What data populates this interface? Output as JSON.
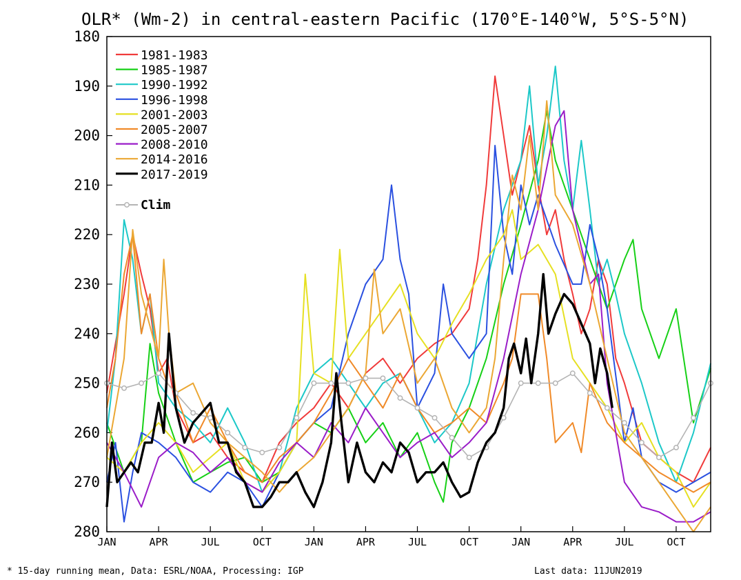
{
  "chart_data": {
    "type": "line",
    "title": "OLR* (Wm-2) in central-eastern Pacific (170°E-140°W, 5°S-5°N)",
    "ylim": [
      280,
      180
    ],
    "y_axis_inverted": true,
    "yticks": [
      180,
      190,
      200,
      210,
      220,
      230,
      240,
      250,
      260,
      270,
      280
    ],
    "xlim": [
      0,
      35
    ],
    "x_unit": "month index from first JAN",
    "xticks": [
      {
        "x": 0,
        "label": "JAN"
      },
      {
        "x": 3,
        "label": "APR"
      },
      {
        "x": 6,
        "label": "JUL"
      },
      {
        "x": 9,
        "label": "OCT"
      },
      {
        "x": 12,
        "label": "JAN"
      },
      {
        "x": 15,
        "label": "APR"
      },
      {
        "x": 18,
        "label": "JUL"
      },
      {
        "x": 21,
        "label": "OCT"
      },
      {
        "x": 24,
        "label": "JAN"
      },
      {
        "x": 27,
        "label": "APR"
      },
      {
        "x": 30,
        "label": "JUL"
      },
      {
        "x": 33,
        "label": "OCT"
      }
    ],
    "legend_position": "top-left",
    "grid": false,
    "series": [
      {
        "name": "1981-1983",
        "color": "#f03a3a",
        "width": 2,
        "x": [
          0,
          1,
          1.5,
          2,
          2.5,
          3,
          3.5,
          4,
          5,
          6,
          7,
          8,
          9,
          10,
          11,
          12,
          13,
          14,
          15,
          16,
          17,
          18,
          19,
          20,
          21,
          21.5,
          22,
          22.5,
          23,
          23.5,
          24,
          24.5,
          25,
          25.5,
          26,
          26.5,
          27,
          27.5,
          28,
          28.5,
          29,
          29.5,
          30,
          31,
          32,
          33,
          34,
          35
        ],
        "y": [
          252,
          232,
          220,
          228,
          235,
          248,
          245,
          255,
          262,
          260,
          265,
          268,
          270,
          262,
          258,
          255,
          250,
          255,
          248,
          245,
          250,
          245,
          242,
          240,
          235,
          225,
          210,
          188,
          200,
          212,
          205,
          198,
          210,
          220,
          215,
          225,
          232,
          240,
          235,
          225,
          230,
          245,
          250,
          262,
          265,
          268,
          270,
          263
        ]
      },
      {
        "name": "1985-1987",
        "color": "#16d016",
        "width": 2,
        "x": [
          0,
          1,
          2,
          2.5,
          3,
          4,
          5,
          6,
          7,
          8,
          9,
          10,
          11,
          12,
          13,
          14,
          15,
          16,
          17,
          18,
          19,
          19.5,
          20,
          21,
          22,
          23,
          24,
          25,
          25.5,
          26,
          27,
          28,
          29,
          30,
          30.5,
          31,
          32,
          33,
          34,
          35
        ],
        "y": [
          258,
          268,
          262,
          242,
          252,
          262,
          270,
          268,
          266,
          265,
          270,
          268,
          262,
          258,
          260,
          255,
          262,
          258,
          265,
          260,
          270,
          274,
          262,
          255,
          245,
          230,
          218,
          205,
          195,
          205,
          215,
          225,
          235,
          225,
          221,
          235,
          245,
          235,
          258,
          247
        ]
      },
      {
        "name": "1990-1992",
        "color": "#1cc8c8",
        "width": 2,
        "x": [
          0,
          0.5,
          1,
          1.5,
          2,
          2.5,
          3,
          4,
          5,
          6,
          7,
          8,
          9,
          10,
          11,
          12,
          13,
          14,
          15,
          16,
          17,
          18,
          19,
          20,
          21,
          22,
          23,
          24,
          24.5,
          25,
          25.5,
          26,
          26.5,
          27,
          27.5,
          28,
          28.5,
          29,
          29.5,
          30,
          31,
          32,
          33,
          34,
          35
        ],
        "y": [
          260,
          245,
          217,
          225,
          240,
          232,
          250,
          255,
          258,
          262,
          255,
          262,
          272,
          268,
          255,
          248,
          245,
          250,
          255,
          250,
          248,
          255,
          262,
          258,
          250,
          230,
          215,
          205,
          190,
          210,
          200,
          186,
          205,
          215,
          201,
          215,
          230,
          225,
          232,
          240,
          250,
          262,
          270,
          260,
          246
        ]
      },
      {
        "name": "1996-1998",
        "color": "#2a50e0",
        "width": 2,
        "x": [
          0,
          0.5,
          1,
          1.5,
          2,
          3,
          4,
          5,
          6,
          7,
          8,
          9,
          10,
          11,
          12,
          13,
          14,
          15,
          16,
          16.5,
          17,
          17.5,
          18,
          19,
          19.5,
          20,
          21,
          22,
          22.5,
          23,
          23.5,
          24,
          24.5,
          25,
          26,
          27,
          27.5,
          28,
          28.5,
          29,
          30,
          30.5,
          31,
          32,
          33,
          34,
          35
        ],
        "y": [
          270,
          262,
          278,
          268,
          260,
          262,
          265,
          270,
          272,
          268,
          270,
          275,
          268,
          262,
          258,
          255,
          240,
          230,
          225,
          210,
          225,
          232,
          255,
          248,
          230,
          240,
          245,
          240,
          202,
          220,
          228,
          210,
          218,
          212,
          222,
          230,
          230,
          218,
          225,
          235,
          262,
          255,
          265,
          270,
          272,
          270,
          268
        ]
      },
      {
        "name": "2001-2003",
        "color": "#e6e022",
        "width": 2,
        "x": [
          0,
          1,
          2,
          3,
          4,
          5,
          6,
          7,
          8,
          9,
          10,
          11,
          11.5,
          12,
          13,
          13.5,
          14,
          15,
          16,
          17,
          18,
          19,
          20,
          21,
          22,
          23,
          23.5,
          24,
          25,
          26,
          27,
          28,
          29,
          30,
          31,
          32,
          33,
          34,
          35
        ],
        "y": [
          265,
          268,
          262,
          258,
          262,
          268,
          265,
          262,
          270,
          272,
          268,
          262,
          228,
          248,
          250,
          223,
          245,
          240,
          235,
          230,
          240,
          245,
          238,
          232,
          225,
          220,
          215,
          225,
          222,
          228,
          245,
          250,
          255,
          262,
          258,
          265,
          268,
          275,
          270
        ]
      },
      {
        "name": "2005-2007",
        "color": "#f08a28",
        "width": 2,
        "x": [
          0,
          0.5,
          1,
          1.5,
          2,
          2.5,
          3,
          3.5,
          4,
          5,
          6,
          7,
          8,
          9,
          10,
          11,
          12,
          13,
          14,
          15,
          16,
          17,
          18,
          19,
          20,
          21,
          22,
          23,
          23.5,
          24,
          25,
          25.5,
          26,
          27,
          27.5,
          28,
          29,
          30,
          31,
          32,
          33,
          34,
          35
        ],
        "y": [
          255,
          245,
          228,
          220,
          240,
          232,
          245,
          250,
          252,
          262,
          255,
          262,
          268,
          270,
          265,
          262,
          258,
          252,
          245,
          250,
          255,
          248,
          255,
          260,
          258,
          255,
          258,
          250,
          245,
          232,
          232,
          245,
          262,
          258,
          264,
          250,
          258,
          262,
          265,
          268,
          270,
          272,
          270
        ]
      },
      {
        "name": "2008-2010",
        "color": "#9a1cc8",
        "width": 2,
        "x": [
          0,
          1,
          2,
          3,
          4,
          5,
          6,
          7,
          8,
          9,
          10,
          11,
          12,
          13,
          14,
          15,
          16,
          17,
          18,
          19,
          20,
          21,
          22,
          23,
          24,
          25,
          26,
          26.5,
          27,
          28,
          28.5,
          29,
          30,
          31,
          32,
          33,
          34,
          35
        ],
        "y": [
          262,
          268,
          275,
          265,
          262,
          264,
          268,
          265,
          270,
          272,
          266,
          262,
          265,
          258,
          262,
          255,
          260,
          265,
          262,
          260,
          265,
          262,
          258,
          245,
          228,
          215,
          198,
          195,
          215,
          230,
          228,
          250,
          270,
          275,
          276,
          278,
          278,
          276
        ]
      },
      {
        "name": "2014-2016",
        "color": "#eba733",
        "width": 2,
        "x": [
          0,
          1,
          1.5,
          2,
          3,
          3.3,
          3.6,
          4,
          5,
          6,
          7,
          8,
          9,
          10,
          11,
          12,
          13,
          14,
          15,
          15.5,
          16,
          17,
          18,
          19,
          20,
          21,
          22,
          22.5,
          23,
          23.5,
          24,
          24.5,
          25,
          25.5,
          26,
          27,
          28,
          29,
          30,
          31,
          32,
          33,
          34,
          35
        ],
        "y": [
          265,
          245,
          219,
          232,
          245,
          225,
          240,
          252,
          250,
          258,
          262,
          265,
          268,
          272,
          268,
          265,
          260,
          255,
          248,
          227,
          240,
          235,
          250,
          245,
          255,
          260,
          255,
          245,
          225,
          208,
          215,
          200,
          215,
          193,
          212,
          218,
          230,
          245,
          260,
          265,
          270,
          275,
          280,
          275
        ]
      }
    ],
    "black_series": {
      "name": "2017-2019",
      "color": "#000000",
      "width": 3.4,
      "x": [
        0,
        0.3,
        0.6,
        1,
        1.4,
        1.8,
        2.2,
        2.6,
        3,
        3.3,
        3.6,
        4,
        4.5,
        5,
        5.5,
        6,
        6.5,
        7,
        7.5,
        8,
        8.5,
        9,
        9.5,
        10,
        10.5,
        11,
        11.5,
        12,
        12.5,
        13,
        13.3,
        13.6,
        14,
        14.5,
        15,
        15.5,
        16,
        16.5,
        17,
        17.5,
        18,
        18.5,
        19,
        19.5,
        20,
        20.5,
        21,
        21.5,
        22,
        22.5,
        23,
        23.3,
        23.6,
        24,
        24.3,
        24.6,
        25,
        25.3,
        25.6,
        26,
        26.5,
        27,
        27.5,
        28,
        28.3,
        28.6,
        29,
        29.3
      ],
      "y": [
        275,
        262,
        270,
        268,
        266,
        268,
        262,
        262,
        254,
        260,
        240,
        255,
        262,
        258,
        256,
        254,
        262,
        262,
        268,
        270,
        275,
        275,
        273,
        270,
        270,
        268,
        272,
        275,
        270,
        262,
        248,
        258,
        270,
        262,
        268,
        270,
        266,
        268,
        262,
        264,
        270,
        268,
        268,
        266,
        270,
        273,
        272,
        266,
        262,
        260,
        255,
        245,
        242,
        248,
        241,
        250,
        240,
        228,
        240,
        236,
        232,
        234,
        238,
        242,
        250,
        243,
        248,
        255
      ]
    },
    "clim": {
      "name": "Clim",
      "color": "#b4b4b4",
      "x": [
        0,
        1,
        2,
        3,
        4,
        5,
        6,
        7,
        8,
        9,
        10,
        11,
        12,
        13,
        14,
        15,
        16,
        17,
        18,
        19,
        20,
        21,
        22,
        23,
        24,
        25,
        26,
        27,
        28,
        29,
        30,
        31,
        32,
        33,
        34,
        35
      ],
      "y": [
        250,
        251,
        250,
        248,
        252,
        256,
        257,
        260,
        263,
        264,
        263,
        257,
        250,
        250,
        250,
        249,
        249,
        253,
        255,
        257,
        261,
        265,
        263,
        257,
        250,
        250,
        250,
        248,
        252,
        255,
        258,
        262,
        265,
        263,
        257,
        250
      ]
    }
  },
  "footer": {
    "left": "* 15-day running mean, Data: ESRL/NOAA, Processing: IGP",
    "right": "Last data: 11JUN2019"
  }
}
